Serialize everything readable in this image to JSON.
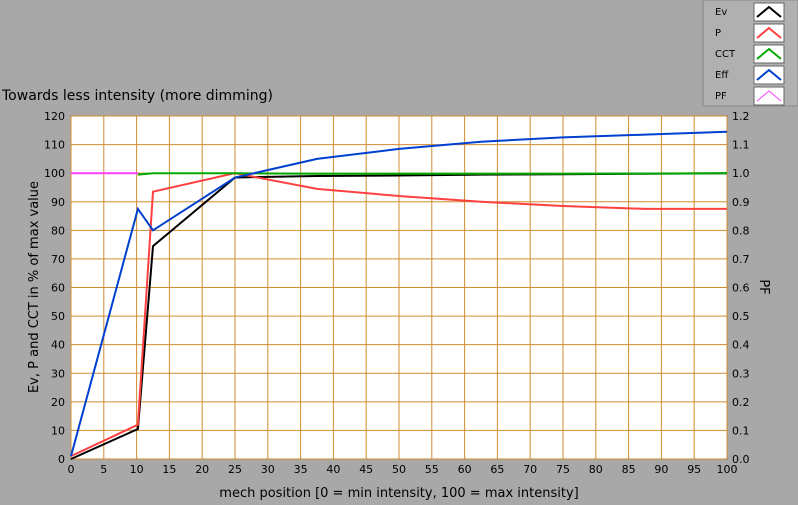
{
  "chart_data": {
    "type": "line",
    "title": "Towards less intensity (more dimming)",
    "xlabel": "mech position [0 = min intensity, 100 = max intensity]",
    "ylabel": "Ev, P and CCT in % of max value",
    "y2label": "PF",
    "xlim": [
      0,
      100
    ],
    "ylim": [
      0,
      120
    ],
    "y2lim": [
      0,
      1.2
    ],
    "xticks": [
      "0",
      "5",
      "10",
      "15",
      "20",
      "25",
      "30",
      "35",
      "40",
      "45",
      "50",
      "55",
      "60",
      "65",
      "70",
      "75",
      "80",
      "85",
      "90",
      "95",
      "100"
    ],
    "yticks": [
      "0",
      "10",
      "20",
      "30",
      "40",
      "50",
      "60",
      "70",
      "80",
      "90",
      "100",
      "110",
      "120"
    ],
    "y2ticks": [
      "0.0",
      "0.1",
      "0.2",
      "0.3",
      "0.4",
      "0.5",
      "0.6",
      "0.7",
      "0.8",
      "0.9",
      "1.0",
      "1.1",
      "1.2"
    ],
    "grid": true,
    "legend_position": "top-right",
    "series": [
      {
        "name": "Ev",
        "color": "#000000",
        "x": [
          0,
          10.2,
          12.5,
          25,
          37.5,
          50,
          62.5,
          75,
          87.5,
          100
        ],
        "y": [
          0,
          10.5,
          74.5,
          98.5,
          99,
          99.2,
          99.5,
          99.6,
          99.8,
          100
        ]
      },
      {
        "name": "P",
        "color": "#ff4040",
        "x": [
          0,
          10.2,
          12.5,
          25,
          37.5,
          50,
          62.5,
          75,
          87.5,
          100
        ],
        "y": [
          1,
          12,
          93.5,
          100,
          94.5,
          92,
          90,
          88.5,
          87.5,
          87.5
        ]
      },
      {
        "name": "CCT",
        "color": "#00aa00",
        "x": [
          10.2,
          12.5,
          25,
          37.5,
          50,
          62.5,
          75,
          87.5,
          100
        ],
        "y": [
          99.5,
          100,
          100,
          99.8,
          99.8,
          99.8,
          99.8,
          99.9,
          100
        ]
      },
      {
        "name": "Eff",
        "color": "#0040d0",
        "x": [
          0,
          10.2,
          12.5,
          25,
          37.5,
          50,
          62.5,
          75,
          87.5,
          100
        ],
        "y": [
          1,
          87.5,
          80,
          98.5,
          105,
          108.5,
          111,
          112.5,
          113.5,
          114.5
        ]
      },
      {
        "name": "PF",
        "color": "#ff40ff",
        "axis": "right",
        "x": [
          0,
          10.2
        ],
        "y": [
          1.0,
          1.0
        ]
      }
    ]
  }
}
